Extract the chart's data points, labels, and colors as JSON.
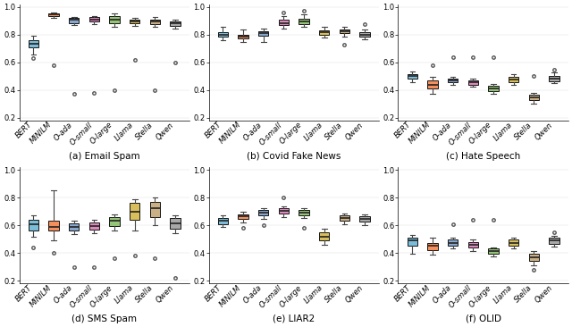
{
  "subplots": [
    {
      "title": "(a) Email Spam",
      "ylim": [
        0.18,
        1.02
      ],
      "yticks": [
        0.2,
        0.4,
        0.6,
        0.8,
        1.0
      ],
      "boxes": [
        {
          "q1": 0.71,
          "med": 0.735,
          "q3": 0.76,
          "whislo": 0.655,
          "whishi": 0.79,
          "fliers": [
            0.63
          ]
        },
        {
          "q1": 0.935,
          "med": 0.945,
          "q3": 0.955,
          "whislo": 0.92,
          "whishi": 0.96,
          "fliers": [
            0.58
          ]
        },
        {
          "q1": 0.885,
          "med": 0.905,
          "q3": 0.92,
          "whislo": 0.87,
          "whishi": 0.93,
          "fliers": [
            0.37
          ]
        },
        {
          "q1": 0.895,
          "med": 0.91,
          "q3": 0.925,
          "whislo": 0.875,
          "whishi": 0.935,
          "fliers": [
            0.38
          ]
        },
        {
          "q1": 0.88,
          "med": 0.91,
          "q3": 0.935,
          "whislo": 0.855,
          "whishi": 0.955,
          "fliers": [
            0.4
          ]
        },
        {
          "q1": 0.88,
          "med": 0.895,
          "q3": 0.91,
          "whislo": 0.86,
          "whishi": 0.92,
          "fliers": [
            0.62
          ]
        },
        {
          "q1": 0.875,
          "med": 0.895,
          "q3": 0.91,
          "whislo": 0.855,
          "whishi": 0.925,
          "fliers": [
            0.4
          ]
        },
        {
          "q1": 0.865,
          "med": 0.88,
          "q3": 0.895,
          "whislo": 0.845,
          "whishi": 0.905,
          "fliers": [
            0.6
          ]
        }
      ]
    },
    {
      "title": "(b) Covid Fake News",
      "ylim": [
        0.18,
        1.02
      ],
      "yticks": [
        0.2,
        0.4,
        0.6,
        0.8,
        1.0
      ],
      "boxes": [
        {
          "q1": 0.785,
          "med": 0.8,
          "q3": 0.815,
          "whislo": 0.76,
          "whishi": 0.855,
          "fliers": []
        },
        {
          "q1": 0.77,
          "med": 0.785,
          "q3": 0.8,
          "whislo": 0.75,
          "whishi": 0.835,
          "fliers": []
        },
        {
          "q1": 0.795,
          "med": 0.81,
          "q3": 0.825,
          "whislo": 0.75,
          "whishi": 0.845,
          "fliers": []
        },
        {
          "q1": 0.87,
          "med": 0.885,
          "q3": 0.905,
          "whislo": 0.845,
          "whishi": 0.935,
          "fliers": [
            0.96
          ]
        },
        {
          "q1": 0.875,
          "med": 0.895,
          "q3": 0.915,
          "whislo": 0.855,
          "whishi": 0.945,
          "fliers": [
            0.97
          ]
        },
        {
          "q1": 0.8,
          "med": 0.815,
          "q3": 0.83,
          "whislo": 0.78,
          "whishi": 0.855,
          "fliers": []
        },
        {
          "q1": 0.81,
          "med": 0.825,
          "q3": 0.84,
          "whislo": 0.785,
          "whishi": 0.855,
          "fliers": [
            0.73
          ]
        },
        {
          "q1": 0.785,
          "med": 0.8,
          "q3": 0.815,
          "whislo": 0.765,
          "whishi": 0.835,
          "fliers": [
            0.875
          ]
        }
      ]
    },
    {
      "title": "(c) Hate Speech",
      "ylim": [
        0.18,
        1.02
      ],
      "yticks": [
        0.2,
        0.4,
        0.6,
        0.8,
        1.0
      ],
      "boxes": [
        {
          "q1": 0.485,
          "med": 0.5,
          "q3": 0.515,
          "whislo": 0.46,
          "whishi": 0.535,
          "fliers": []
        },
        {
          "q1": 0.41,
          "med": 0.44,
          "q3": 0.47,
          "whislo": 0.375,
          "whishi": 0.495,
          "fliers": [
            0.58
          ]
        },
        {
          "q1": 0.455,
          "med": 0.47,
          "q3": 0.485,
          "whislo": 0.44,
          "whishi": 0.495,
          "fliers": [
            0.64
          ]
        },
        {
          "q1": 0.44,
          "med": 0.455,
          "q3": 0.47,
          "whislo": 0.425,
          "whishi": 0.48,
          "fliers": [
            0.64
          ]
        },
        {
          "q1": 0.395,
          "med": 0.415,
          "q3": 0.43,
          "whislo": 0.375,
          "whishi": 0.445,
          "fliers": [
            0.64
          ]
        },
        {
          "q1": 0.455,
          "med": 0.475,
          "q3": 0.495,
          "whislo": 0.435,
          "whishi": 0.515,
          "fliers": []
        },
        {
          "q1": 0.325,
          "med": 0.345,
          "q3": 0.365,
          "whislo": 0.3,
          "whishi": 0.38,
          "fliers": [
            0.5
          ]
        },
        {
          "q1": 0.465,
          "med": 0.485,
          "q3": 0.505,
          "whislo": 0.45,
          "whishi": 0.525,
          "fliers": [
            0.55
          ]
        }
      ]
    },
    {
      "title": "(d) SMS Spam",
      "ylim": [
        0.18,
        1.02
      ],
      "yticks": [
        0.2,
        0.4,
        0.6,
        0.8,
        1.0
      ],
      "boxes": [
        {
          "q1": 0.565,
          "med": 0.605,
          "q3": 0.64,
          "whislo": 0.52,
          "whishi": 0.67,
          "fliers": [
            0.44
          ]
        },
        {
          "q1": 0.56,
          "med": 0.59,
          "q3": 0.635,
          "whislo": 0.49,
          "whishi": 0.85,
          "fliers": [
            0.4
          ]
        },
        {
          "q1": 0.565,
          "med": 0.59,
          "q3": 0.615,
          "whislo": 0.535,
          "whishi": 0.635,
          "fliers": [
            0.3
          ]
        },
        {
          "q1": 0.57,
          "med": 0.595,
          "q3": 0.62,
          "whislo": 0.54,
          "whishi": 0.64,
          "fliers": [
            0.3
          ]
        },
        {
          "q1": 0.595,
          "med": 0.63,
          "q3": 0.66,
          "whislo": 0.565,
          "whishi": 0.68,
          "fliers": [
            0.36
          ]
        },
        {
          "q1": 0.64,
          "med": 0.7,
          "q3": 0.76,
          "whislo": 0.565,
          "whishi": 0.79,
          "fliers": [
            0.38
          ]
        },
        {
          "q1": 0.66,
          "med": 0.72,
          "q3": 0.77,
          "whislo": 0.6,
          "whishi": 0.8,
          "fliers": [
            0.36
          ]
        },
        {
          "q1": 0.575,
          "med": 0.615,
          "q3": 0.655,
          "whislo": 0.545,
          "whishi": 0.67,
          "fliers": [
            0.22
          ]
        }
      ]
    },
    {
      "title": "(e) LIAR2",
      "ylim": [
        0.18,
        1.02
      ],
      "yticks": [
        0.2,
        0.4,
        0.6,
        0.8,
        1.0
      ],
      "boxes": [
        {
          "q1": 0.61,
          "med": 0.635,
          "q3": 0.655,
          "whislo": 0.585,
          "whishi": 0.67,
          "fliers": []
        },
        {
          "q1": 0.645,
          "med": 0.665,
          "q3": 0.68,
          "whislo": 0.62,
          "whishi": 0.7,
          "fliers": [
            0.58
          ]
        },
        {
          "q1": 0.67,
          "med": 0.69,
          "q3": 0.71,
          "whislo": 0.645,
          "whishi": 0.725,
          "fliers": [
            0.6
          ]
        },
        {
          "q1": 0.685,
          "med": 0.705,
          "q3": 0.72,
          "whislo": 0.66,
          "whishi": 0.735,
          "fliers": [
            0.8
          ]
        },
        {
          "q1": 0.67,
          "med": 0.69,
          "q3": 0.71,
          "whislo": 0.65,
          "whishi": 0.72,
          "fliers": [
            0.58
          ]
        },
        {
          "q1": 0.49,
          "med": 0.52,
          "q3": 0.55,
          "whislo": 0.46,
          "whishi": 0.575,
          "fliers": []
        },
        {
          "q1": 0.63,
          "med": 0.65,
          "q3": 0.67,
          "whislo": 0.605,
          "whishi": 0.685,
          "fliers": []
        },
        {
          "q1": 0.625,
          "med": 0.645,
          "q3": 0.665,
          "whislo": 0.6,
          "whishi": 0.68,
          "fliers": []
        }
      ]
    },
    {
      "title": "(f) OLID",
      "ylim": [
        0.18,
        1.02
      ],
      "yticks": [
        0.2,
        0.4,
        0.6,
        0.8,
        1.0
      ],
      "boxes": [
        {
          "q1": 0.455,
          "med": 0.49,
          "q3": 0.51,
          "whislo": 0.395,
          "whishi": 0.53,
          "fliers": []
        },
        {
          "q1": 0.42,
          "med": 0.45,
          "q3": 0.475,
          "whislo": 0.39,
          "whishi": 0.51,
          "fliers": []
        },
        {
          "q1": 0.455,
          "med": 0.475,
          "q3": 0.495,
          "whislo": 0.43,
          "whishi": 0.51,
          "fliers": [
            0.61
          ]
        },
        {
          "q1": 0.44,
          "med": 0.46,
          "q3": 0.48,
          "whislo": 0.415,
          "whishi": 0.5,
          "fliers": [
            0.64
          ]
        },
        {
          "q1": 0.395,
          "med": 0.415,
          "q3": 0.43,
          "whislo": 0.375,
          "whishi": 0.44,
          "fliers": [
            0.64
          ]
        },
        {
          "q1": 0.455,
          "med": 0.475,
          "q3": 0.495,
          "whislo": 0.435,
          "whishi": 0.51,
          "fliers": []
        },
        {
          "q1": 0.345,
          "med": 0.37,
          "q3": 0.395,
          "whislo": 0.31,
          "whishi": 0.415,
          "fliers": [
            0.28
          ]
        },
        {
          "q1": 0.465,
          "med": 0.49,
          "q3": 0.51,
          "whislo": 0.445,
          "whishi": 0.525,
          "fliers": [
            0.55
          ]
        }
      ]
    }
  ],
  "labels": [
    "BERT",
    "MINILM",
    "O-ada",
    "O-small",
    "O-large",
    "Llama",
    "Stella",
    "Qwen"
  ],
  "colors": [
    "#6db6d4",
    "#f4844a",
    "#7b9ec9",
    "#d97cb5",
    "#8bbf6a",
    "#d4b84a",
    "#c4a878",
    "#a0a0a0"
  ],
  "mediancolor": "#222222",
  "figsize": [
    6.4,
    3.66
  ],
  "dpi": 100
}
